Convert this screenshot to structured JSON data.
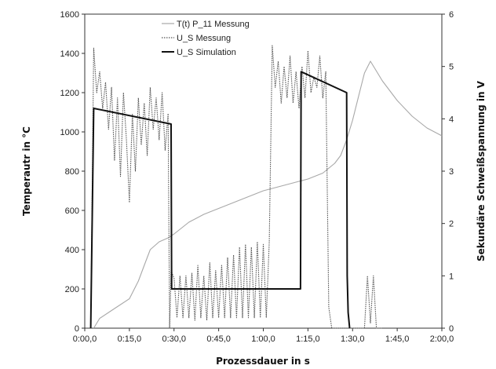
{
  "chart_data": {
    "type": "line",
    "title": "",
    "xlabel": "Prozessdauer in s",
    "ylabel": "Temperautr in °C",
    "y2label": "Sekundäre Schweißspannung in V",
    "xlim": [
      0,
      120
    ],
    "ylim": [
      0,
      1600
    ],
    "y2lim": [
      0,
      6
    ],
    "x_ticks": [
      0,
      15,
      30,
      45,
      60,
      75,
      90,
      105,
      120
    ],
    "x_tick_labels": [
      "0:00,0",
      "0:15,0",
      "0:30,0",
      "0:45,0",
      "1:00,0",
      "1:15,0",
      "1:30,0",
      "1:45,0",
      "2:00,0"
    ],
    "y_ticks": [
      0,
      200,
      400,
      600,
      800,
      1000,
      1200,
      1400,
      1600
    ],
    "y_tick_labels": [
      "0",
      "200",
      "400",
      "600",
      "800",
      "1000",
      "1200",
      "1400",
      "1600"
    ],
    "y2_ticks": [
      0,
      1,
      2,
      3,
      4,
      5,
      6
    ],
    "y2_tick_labels": [
      "0",
      "1",
      "2",
      "3",
      "4",
      "5",
      "6"
    ],
    "grid": false,
    "legend_position": "top-center",
    "series": [
      {
        "name": "T(t) P_11 Messung",
        "axis": "left",
        "color": "#a8a8a8",
        "style": "solid",
        "x": [
          3,
          5,
          10,
          15,
          18,
          20,
          22,
          25,
          28,
          30,
          35,
          40,
          45,
          50,
          55,
          60,
          65,
          70,
          75,
          80,
          84,
          86,
          88,
          90,
          92,
          94,
          96,
          100,
          105,
          110,
          115,
          120
        ],
        "y": [
          0,
          50,
          100,
          150,
          240,
          320,
          400,
          440,
          460,
          480,
          540,
          580,
          610,
          640,
          670,
          700,
          720,
          740,
          760,
          790,
          840,
          880,
          960,
          1060,
          1180,
          1300,
          1360,
          1260,
          1160,
          1080,
          1020,
          980
        ]
      },
      {
        "name": "U_S Messung",
        "axis": "right",
        "color": "#555555",
        "style": "dotted",
        "x": [
          2,
          3,
          4,
          5,
          6,
          7,
          8,
          9,
          10,
          11,
          12,
          13,
          14,
          15,
          16,
          17,
          18,
          19,
          20,
          21,
          22,
          23,
          24,
          25,
          26,
          27,
          28,
          28.5,
          29,
          30,
          31,
          32,
          33,
          34,
          35,
          36,
          37,
          38,
          39,
          40,
          41,
          42,
          43,
          44,
          45,
          46,
          47,
          48,
          49,
          50,
          51,
          52,
          53,
          54,
          55,
          56,
          57,
          58,
          59,
          60,
          61,
          62,
          63,
          64,
          65,
          66,
          67,
          68,
          69,
          70,
          71,
          72,
          73,
          74,
          75,
          76,
          77,
          78,
          79,
          80,
          81,
          82,
          83,
          84,
          85,
          86,
          87,
          88,
          89,
          90,
          91,
          92,
          93,
          94,
          95,
          96,
          97,
          98,
          99,
          100
        ],
        "y": [
          0,
          5.35,
          4.5,
          4.9,
          4.2,
          4.7,
          3.8,
          4.6,
          3.2,
          4.4,
          2.9,
          4.5,
          3.6,
          2.4,
          4.1,
          3.0,
          4.4,
          3.5,
          4.3,
          3.3,
          4.6,
          3.8,
          4.4,
          3.6,
          4.5,
          3.4,
          4.1,
          0,
          1.1,
          0.95,
          0.2,
          1.0,
          0.2,
          1.0,
          0.2,
          1.05,
          0.15,
          1.2,
          0.2,
          1.0,
          0.15,
          1.25,
          0.2,
          1.1,
          0.2,
          1.2,
          0.2,
          1.35,
          0.2,
          1.4,
          0.2,
          1.55,
          0.2,
          1.6,
          0.2,
          1.55,
          0.2,
          1.65,
          0.2,
          1.6,
          0.2,
          1.65,
          5.4,
          4.6,
          5.1,
          4.3,
          5.0,
          4.4,
          5.2,
          4.3,
          4.9,
          4.2,
          5.0,
          4.4,
          5.3,
          4.5,
          4.8,
          4.6,
          5.2,
          4.4,
          4.9,
          0.4,
          0,
          0,
          0,
          0,
          0,
          0,
          0,
          0,
          0,
          0,
          0,
          0,
          1.0,
          0.1,
          1.0,
          0,
          0,
          0
        ]
      },
      {
        "name": "U_S Simulation",
        "axis": "right",
        "color": "#111111",
        "style": "solid",
        "x": [
          2,
          3,
          29,
          29.2,
          72.5,
          72.7,
          88,
          88.2,
          88.5,
          89
        ],
        "y": [
          0,
          4.2,
          3.9,
          0.75,
          0.75,
          4.9,
          4.5,
          1.0,
          0.3,
          0
        ]
      }
    ]
  }
}
